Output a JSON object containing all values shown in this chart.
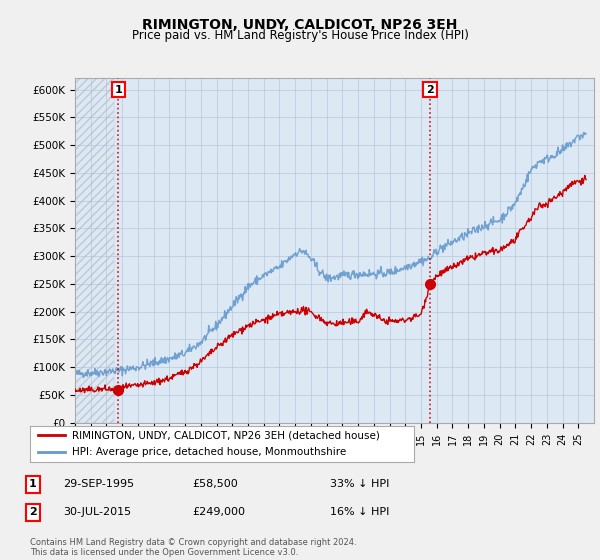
{
  "title": "RIMINGTON, UNDY, CALDICOT, NP26 3EH",
  "subtitle": "Price paid vs. HM Land Registry's House Price Index (HPI)",
  "ylabel_ticks": [
    "£0",
    "£50K",
    "£100K",
    "£150K",
    "£200K",
    "£250K",
    "£300K",
    "£350K",
    "£400K",
    "£450K",
    "£500K",
    "£550K",
    "£600K"
  ],
  "ytick_values": [
    0,
    50000,
    100000,
    150000,
    200000,
    250000,
    300000,
    350000,
    400000,
    450000,
    500000,
    550000,
    600000
  ],
  "ylim": [
    0,
    620000
  ],
  "background_color": "#f0f0f0",
  "plot_bg_color": "#dce9f5",
  "hpi_color": "#6699cc",
  "price_color": "#cc0000",
  "marker1_date": 1995.75,
  "marker1_price": 58500,
  "marker2_date": 2015.58,
  "marker2_price": 249000,
  "legend_house_label": "RIMINGTON, UNDY, CALDICOT, NP26 3EH (detached house)",
  "legend_hpi_label": "HPI: Average price, detached house, Monmouthshire",
  "annotation1_date": "29-SEP-1995",
  "annotation1_price": "£58,500",
  "annotation1_pct": "33% ↓ HPI",
  "annotation2_date": "30-JUL-2015",
  "annotation2_price": "£249,000",
  "annotation2_pct": "16% ↓ HPI",
  "footer": "Contains HM Land Registry data © Crown copyright and database right 2024.\nThis data is licensed under the Open Government Licence v3.0.",
  "xmin": 1993,
  "xmax": 2026,
  "dashed_line1_x": 1995.75,
  "dashed_line2_x": 2015.58
}
